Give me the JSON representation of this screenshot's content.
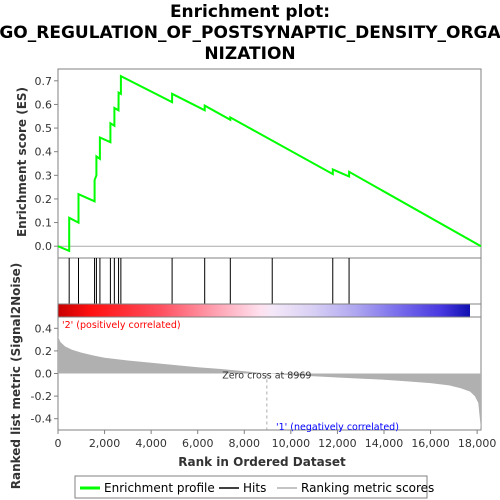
{
  "title_line1": "Enrichment plot:",
  "title_line2": "GO_REGULATION_OF_POSTSYNAPTIC_DENSITY_ORGA",
  "title_line3": "NIZATION",
  "colors": {
    "es_line": "#00ff00",
    "hits": "#000000",
    "metric_fill": "#b0b0b0",
    "pos_label": "#ff0000",
    "neg_label": "#0000ff",
    "zero_line": "#aaaaaa"
  },
  "chart_data": [
    {
      "type": "line",
      "name": "enrichment",
      "ylabel": "Enrichment score (ES)",
      "xlim": [
        0,
        18166
      ],
      "ylim": [
        -0.05,
        0.75
      ],
      "yticks": [
        "0.0",
        "0.1",
        "0.2",
        "0.3",
        "0.4",
        "0.5",
        "0.6",
        "0.7"
      ],
      "ytick_values": [
        0.0,
        0.1,
        0.2,
        0.3,
        0.4,
        0.5,
        0.6,
        0.7
      ],
      "series": [
        {
          "name": "Enrichment profile",
          "x": [
            0,
            480,
            481,
            880,
            881,
            1570,
            1571,
            1650,
            1651,
            1800,
            1801,
            2250,
            2251,
            2420,
            2421,
            2600,
            2601,
            2700,
            2701,
            4900,
            4901,
            6300,
            6301,
            7400,
            7401,
            11800,
            11801,
            12500,
            12501,
            18166
          ],
          "y": [
            0.0,
            -0.02,
            0.12,
            0.1,
            0.22,
            0.19,
            0.28,
            0.3,
            0.38,
            0.37,
            0.46,
            0.44,
            0.52,
            0.51,
            0.585,
            0.575,
            0.65,
            0.645,
            0.72,
            0.61,
            0.645,
            0.575,
            0.595,
            0.535,
            0.545,
            0.305,
            0.325,
            0.295,
            0.315,
            0.0
          ]
        }
      ],
      "hits": [
        480,
        880,
        1570,
        1650,
        1800,
        2250,
        2420,
        2600,
        2700,
        4900,
        6300,
        7400,
        9200,
        11800,
        12500
      ]
    },
    {
      "type": "area",
      "name": "ranked_metric",
      "xlabel": "Rank in Ordered Dataset",
      "ylabel": "Ranked list metric (Signal2Noise)",
      "xlim": [
        0,
        18166
      ],
      "ylim": [
        -0.5,
        0.5
      ],
      "xticks": [
        "0",
        "2,000",
        "4,000",
        "6,000",
        "8,000",
        "10,000",
        "12,000",
        "14,000",
        "16,000",
        "18,000"
      ],
      "xtick_values": [
        0,
        2000,
        4000,
        6000,
        8000,
        10000,
        12000,
        14000,
        16000,
        18000
      ],
      "yticks": [
        "0.4",
        "0.2",
        "0.0",
        "-0.2",
        "-0.4"
      ],
      "ytick_values": [
        0.4,
        0.2,
        0.0,
        -0.2,
        -0.4
      ],
      "x": [
        0,
        100,
        300,
        600,
        1000,
        1500,
        2000,
        3000,
        4000,
        5000,
        6000,
        7000,
        8000,
        8969,
        10000,
        11000,
        12000,
        13000,
        14000,
        15000,
        16000,
        16800,
        17300,
        17700,
        17900,
        18050,
        18166
      ],
      "y": [
        0.33,
        0.28,
        0.24,
        0.21,
        0.185,
        0.16,
        0.14,
        0.115,
        0.095,
        0.075,
        0.055,
        0.04,
        0.02,
        0.0,
        -0.015,
        -0.025,
        -0.035,
        -0.045,
        -0.055,
        -0.07,
        -0.085,
        -0.105,
        -0.13,
        -0.16,
        -0.2,
        -0.26,
        -0.5
      ],
      "zero_cross": 8969,
      "zero_cross_label": "Zero cross at 8969",
      "pos_label": "'2' (positively correlated)",
      "neg_label": "'1' (negatively correlated)"
    }
  ],
  "legend": {
    "items": [
      {
        "label": "Enrichment profile",
        "color": "#00ff00"
      },
      {
        "label": "Hits",
        "color": "#000000"
      },
      {
        "label": "Ranking metric scores",
        "color": "#b0b0b0"
      }
    ]
  }
}
